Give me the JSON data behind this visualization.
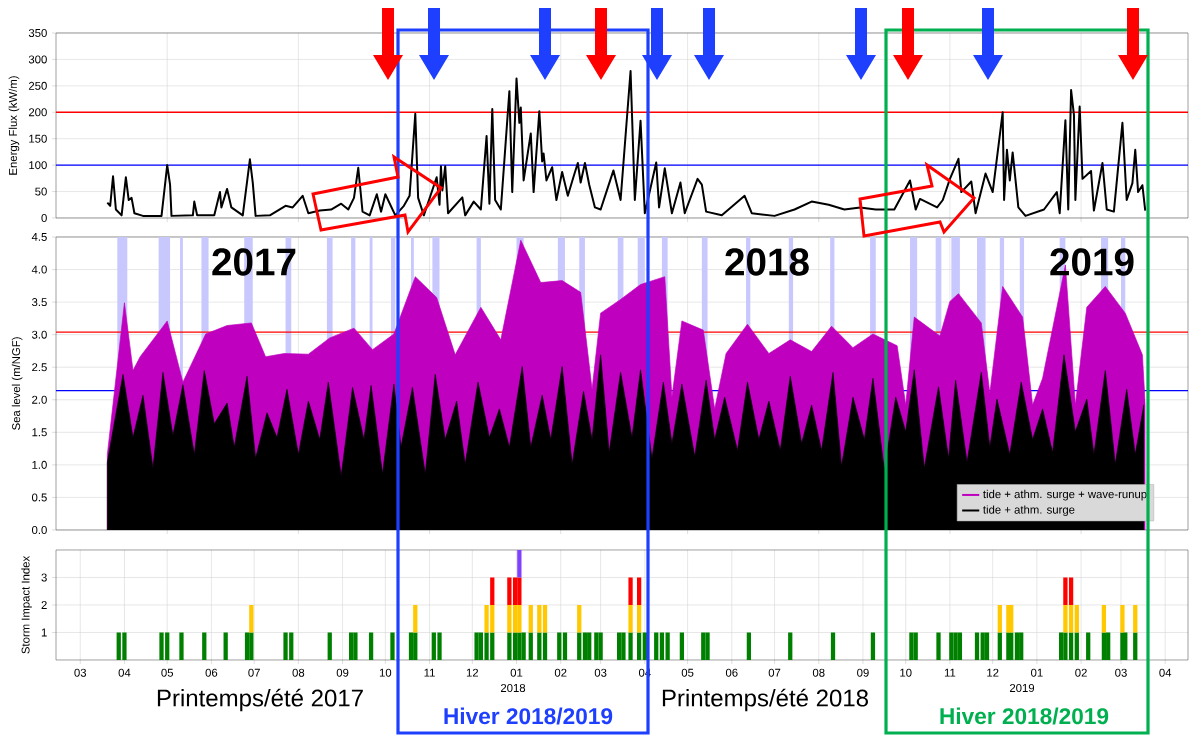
{
  "chart_data": [
    {
      "type": "line",
      "ylabel": "Energy Flux (kW/m)",
      "xlim": [
        "2017-02-12",
        "2019-04-17"
      ],
      "ylim": [
        0,
        350
      ],
      "yticks": [
        0,
        50,
        100,
        150,
        200,
        250,
        300,
        350
      ],
      "xticks": [
        {
          "value": "2017-05-01",
          "label": null
        },
        {
          "value": "2017-08-01",
          "label": null
        },
        {
          "value": "2017-11-01",
          "label": null
        },
        {
          "value": "2018-02-01",
          "label": null
        },
        {
          "value": "2018-05-01",
          "label": null
        },
        {
          "value": "2018-08-01",
          "label": null
        },
        {
          "value": "2018-11-01",
          "label": null
        },
        {
          "value": "2019-02-01",
          "label": null
        }
      ],
      "tick_labels": "y",
      "grid": true,
      "ref_lines": [
        {
          "axis": "y",
          "value": 100,
          "color": "#0000ff"
        },
        {
          "axis": "y",
          "value": 200,
          "color": "#ff0000"
        }
      ],
      "x": [
        "2017-03-20",
        "2017-03-22",
        "2017-03-24",
        "2017-03-26",
        "2017-03-30",
        "2017-04-02",
        "2017-04-04",
        "2017-04-06",
        "2017-04-08",
        "2017-04-14",
        "2017-04-27",
        "2017-05-01",
        "2017-05-03",
        "2017-05-04",
        "2017-05-19",
        "2017-05-20",
        "2017-05-22",
        "2017-06-03",
        "2017-06-07",
        "2017-06-08",
        "2017-06-12",
        "2017-06-15",
        "2017-06-23",
        "2017-06-28",
        "2017-06-30",
        "2017-07-02",
        "2017-07-12",
        "2017-07-23",
        "2017-07-28",
        "2017-08-04",
        "2017-08-08",
        "2017-08-16",
        "2017-08-24",
        "2017-08-31",
        "2017-09-05",
        "2017-09-09",
        "2017-09-12",
        "2017-09-15",
        "2017-09-20",
        "2017-09-25",
        "2017-09-28",
        "2017-10-01",
        "2017-10-08",
        "2017-10-14",
        "2017-10-18",
        "2017-10-22",
        "2017-10-24",
        "2017-10-28",
        "2017-11-06",
        "2017-11-08",
        "2017-11-09",
        "2017-11-10",
        "2017-11-12",
        "2017-11-14",
        "2017-11-24",
        "2017-11-26",
        "2017-12-02",
        "2017-12-07",
        "2017-12-11",
        "2017-12-13",
        "2017-12-15",
        "2017-12-17",
        "2017-12-21",
        "2017-12-27",
        "2017-12-29",
        "2018-01-01",
        "2018-01-03",
        "2018-01-04",
        "2018-01-06",
        "2018-01-11",
        "2018-01-13",
        "2018-01-17",
        "2018-01-19",
        "2018-01-20",
        "2018-01-22",
        "2018-01-26",
        "2018-01-29",
        "2018-02-02",
        "2018-02-06",
        "2018-02-10",
        "2018-02-13",
        "2018-02-15",
        "2018-02-18",
        "2018-02-21",
        "2018-02-25",
        "2018-03-01",
        "2018-03-05",
        "2018-03-10",
        "2018-03-15",
        "2018-03-22",
        "2018-03-25",
        "2018-03-29",
        "2018-04-01",
        "2018-04-09",
        "2018-04-11",
        "2018-04-15",
        "2018-04-20",
        "2018-04-26",
        "2018-04-29",
        "2018-05-08",
        "2018-05-11",
        "2018-05-14",
        "2018-05-25",
        "2018-06-10",
        "2018-06-15",
        "2018-07-01",
        "2018-07-15",
        "2018-07-27",
        "2018-08-08",
        "2018-08-19",
        "2018-08-30",
        "2018-09-10",
        "2018-09-23",
        "2018-10-04",
        "2018-10-08",
        "2018-10-11",
        "2018-10-23",
        "2018-10-27",
        "2018-11-01",
        "2018-11-07",
        "2018-11-09",
        "2018-11-16",
        "2018-11-19",
        "2018-11-26",
        "2018-12-01",
        "2018-12-08",
        "2018-12-09",
        "2018-12-11",
        "2018-12-13",
        "2018-12-15",
        "2018-12-19",
        "2018-12-24",
        "2019-01-06",
        "2019-01-15",
        "2019-01-17",
        "2019-01-21",
        "2019-01-23",
        "2019-01-25",
        "2019-01-27",
        "2019-01-28",
        "2019-01-31",
        "2019-02-02",
        "2019-02-08",
        "2019-02-10",
        "2019-02-16",
        "2019-02-19",
        "2019-02-24",
        "2019-03-02",
        "2019-03-05",
        "2019-03-09",
        "2019-03-11",
        "2019-03-13",
        "2019-03-16",
        "2019-03-18"
      ],
      "series": [
        {
          "color": "#000000",
          "values": [
            29,
            23,
            79,
            16,
            5,
            77,
            34,
            38,
            9,
            4,
            4,
            100,
            63,
            4,
            5,
            31,
            5,
            5,
            49,
            20,
            55,
            20,
            5,
            111,
            67,
            4,
            5,
            23,
            20,
            42,
            9,
            14,
            16,
            27,
            16,
            38,
            95,
            12,
            5,
            45,
            12,
            45,
            5,
            23,
            42,
            197,
            38,
            5,
            77,
            25,
            98,
            52,
            98,
            9,
            39,
            5,
            31,
            16,
            155,
            27,
            206,
            34,
            16,
            240,
            49,
            264,
            180,
            209,
            71,
            160,
            49,
            202,
            107,
            122,
            71,
            96,
            34,
            87,
            42,
            78,
            104,
            67,
            104,
            63,
            20,
            16,
            49,
            90,
            34,
            278,
            34,
            184,
            9,
            105,
            20,
            94,
            9,
            67,
            9,
            74,
            63,
            12,
            5,
            42,
            9,
            4,
            16,
            31,
            25,
            16,
            20,
            16,
            16,
            71,
            16,
            36,
            20,
            34,
            74,
            112,
            49,
            69,
            9,
            84,
            49,
            200,
            34,
            129,
            71,
            124,
            20,
            4,
            16,
            49,
            9,
            185,
            16,
            242,
            195,
            34,
            211,
            74,
            89,
            14,
            104,
            16,
            12,
            180,
            34,
            66,
            129,
            49,
            62,
            14
          ]
        }
      ]
    },
    {
      "type": "area",
      "ylabel": "Sea level (m/NGF)",
      "xlim": [
        "2017-02-12",
        "2019-04-17"
      ],
      "ylim": [
        0,
        4.5
      ],
      "yticks": [
        {
          "value": 0,
          "label": "0.0"
        },
        0.5,
        {
          "value": 1,
          "label": "1.0"
        },
        1.5,
        {
          "value": 2,
          "label": "2.0"
        },
        2.5,
        {
          "value": 3,
          "label": "3.0"
        },
        3.5,
        {
          "value": 4,
          "label": "4.0"
        },
        4.5
      ],
      "xticks": [
        {
          "value": "2017-05-01",
          "label": null
        },
        {
          "value": "2017-08-01",
          "label": null
        },
        {
          "value": "2017-11-01",
          "label": null
        },
        {
          "value": "2018-02-01",
          "label": null
        },
        {
          "value": "2018-05-01",
          "label": null
        },
        {
          "value": "2018-08-01",
          "label": null
        },
        {
          "value": "2018-11-01",
          "label": null
        },
        {
          "value": "2019-02-01",
          "label": null
        }
      ],
      "tick_labels": "y",
      "grid": true,
      "legend": "bottom right",
      "bands": [
        {
          "axis": "x",
          "from": "2017-03-27",
          "to": "2017-04-03",
          "color": "#c8c8ff"
        },
        {
          "axis": "x",
          "from": "2017-04-25",
          "to": "2017-05-03",
          "color": "#c8c8ff"
        },
        {
          "axis": "x",
          "from": "2017-05-10",
          "to": "2017-05-12",
          "color": "#c8c8ff"
        },
        {
          "axis": "x",
          "from": "2017-05-25",
          "to": "2017-05-30",
          "color": "#c8c8ff"
        },
        {
          "axis": "x",
          "from": "2017-06-24",
          "to": "2017-06-30",
          "color": "#c8c8ff"
        },
        {
          "axis": "x",
          "from": "2017-07-23",
          "to": "2017-07-27",
          "color": "#c8c8ff"
        },
        {
          "axis": "x",
          "from": "2017-08-21",
          "to": "2017-08-25",
          "color": "#c8c8ff"
        },
        {
          "axis": "x",
          "from": "2017-09-07",
          "to": "2017-09-10",
          "color": "#c8c8ff"
        },
        {
          "axis": "x",
          "from": "2017-09-20",
          "to": "2017-09-22",
          "color": "#c8c8ff"
        },
        {
          "axis": "x",
          "from": "2017-10-05",
          "to": "2017-10-08",
          "color": "#c8c8ff"
        },
        {
          "axis": "x",
          "from": "2017-10-19",
          "to": "2017-10-21",
          "color": "#c8c8ff"
        },
        {
          "axis": "x",
          "from": "2017-11-03",
          "to": "2017-11-08",
          "color": "#c8c8ff"
        },
        {
          "axis": "x",
          "from": "2017-12-04",
          "to": "2017-12-07",
          "color": "#c8c8ff"
        },
        {
          "axis": "x",
          "from": "2018-01-01",
          "to": "2018-01-06",
          "color": "#c8c8ff"
        },
        {
          "axis": "x",
          "from": "2018-01-30",
          "to": "2018-02-04",
          "color": "#c8c8ff"
        },
        {
          "axis": "x",
          "from": "2018-02-14",
          "to": "2018-02-18",
          "color": "#c8c8ff"
        },
        {
          "axis": "x",
          "from": "2018-03-13",
          "to": "2018-03-17",
          "color": "#c8c8ff"
        },
        {
          "axis": "x",
          "from": "2018-03-27",
          "to": "2018-04-01",
          "color": "#c8c8ff"
        },
        {
          "axis": "x",
          "from": "2018-04-13",
          "to": "2018-04-17",
          "color": "#c8c8ff"
        },
        {
          "axis": "x",
          "from": "2018-05-11",
          "to": "2018-05-15",
          "color": "#c8c8ff"
        },
        {
          "axis": "x",
          "from": "2018-06-11",
          "to": "2018-06-14",
          "color": "#c8c8ff"
        },
        {
          "axis": "x",
          "from": "2018-07-11",
          "to": "2018-07-14",
          "color": "#c8c8ff"
        },
        {
          "axis": "x",
          "from": "2018-08-09",
          "to": "2018-08-12",
          "color": "#c8c8ff"
        },
        {
          "axis": "x",
          "from": "2018-09-06",
          "to": "2018-09-10",
          "color": "#c8c8ff"
        },
        {
          "axis": "x",
          "from": "2018-10-04",
          "to": "2018-10-09",
          "color": "#c8c8ff"
        },
        {
          "axis": "x",
          "from": "2018-10-22",
          "to": "2018-10-26",
          "color": "#c8c8ff"
        },
        {
          "axis": "x",
          "from": "2018-11-02",
          "to": "2018-11-08",
          "color": "#c8c8ff"
        },
        {
          "axis": "x",
          "from": "2018-11-20",
          "to": "2018-11-26",
          "color": "#c8c8ff"
        },
        {
          "axis": "x",
          "from": "2018-12-06",
          "to": "2018-12-09",
          "color": "#c8c8ff"
        },
        {
          "axis": "x",
          "from": "2018-12-20",
          "to": "2018-12-23",
          "color": "#c8c8ff"
        },
        {
          "axis": "x",
          "from": "2019-01-17",
          "to": "2019-01-21",
          "color": "#c8c8ff"
        },
        {
          "axis": "x",
          "from": "2019-02-15",
          "to": "2019-02-20",
          "color": "#c8c8ff"
        },
        {
          "axis": "x",
          "from": "2019-03-01",
          "to": "2019-03-04",
          "color": "#c8c8ff"
        }
      ],
      "ref_lines": [
        {
          "axis": "y",
          "value": 3.04,
          "color": "#ff0000"
        },
        {
          "axis": "y",
          "value": 2.14,
          "color": "#0000ff"
        }
      ],
      "annotations": [
        "2017",
        "2018",
        "2019"
      ],
      "series": [
        {
          "name": "tide + athm. surge + wave-runup",
          "color": "#bf00bf",
          "x": [
            "2017-03-20",
            "2017-04-01",
            "2017-04-07",
            "2017-04-12",
            "2017-05-01",
            "2017-05-12",
            "2017-05-28",
            "2017-06-12",
            "2017-06-29",
            "2017-07-09",
            "2017-07-22",
            "2017-08-08",
            "2017-08-23",
            "2017-09-09",
            "2017-09-22",
            "2017-10-07",
            "2017-10-22",
            "2017-11-06",
            "2017-11-19",
            "2017-12-07",
            "2017-12-21",
            "2018-01-04",
            "2018-01-18",
            "2018-02-02",
            "2018-02-15",
            "2018-02-23",
            "2018-03-01",
            "2018-03-15",
            "2018-03-29",
            "2018-04-15",
            "2018-04-20",
            "2018-04-27",
            "2018-05-12",
            "2018-05-20",
            "2018-05-28",
            "2018-06-12",
            "2018-06-27",
            "2018-07-12",
            "2018-07-27",
            "2018-08-10",
            "2018-08-25",
            "2018-09-08",
            "2018-09-25",
            "2018-10-01",
            "2018-10-07",
            "2018-10-25",
            "2018-11-01",
            "2018-11-07",
            "2018-11-23",
            "2018-11-29",
            "2018-12-08",
            "2018-12-22",
            "2018-12-29",
            "2019-01-05",
            "2019-01-21",
            "2019-01-28",
            "2019-02-05",
            "2019-02-18",
            "2019-03-04",
            "2019-03-16",
            "2019-03-18"
          ],
          "values": [
            1.16,
            3.49,
            2.45,
            2.66,
            3.21,
            2.27,
            3.01,
            3.14,
            3.18,
            2.66,
            2.71,
            2.7,
            2.95,
            3.1,
            2.77,
            3.01,
            3.89,
            3.57,
            2.69,
            3.42,
            2.92,
            4.45,
            3.8,
            3.83,
            3.65,
            2.16,
            3.33,
            3.54,
            3.77,
            3.89,
            2.04,
            3.21,
            3.07,
            1.86,
            2.71,
            3.16,
            2.71,
            2.92,
            2.74,
            3.13,
            2.8,
            3.01,
            2.83,
            1.92,
            3.27,
            2.98,
            3.51,
            3.63,
            3.18,
            2.1,
            3.74,
            3.27,
            1.92,
            2.33,
            4.07,
            1.92,
            3.42,
            3.74,
            3.33,
            2.69,
            1.92
          ]
        },
        {
          "name": "tide + athm. surge",
          "color": "#000000",
          "x": [
            "2017-03-20",
            "2017-03-31",
            "2017-04-07",
            "2017-04-14",
            "2017-04-21",
            "2017-04-28",
            "2017-05-05",
            "2017-05-12",
            "2017-05-20",
            "2017-05-27",
            "2017-06-03",
            "2017-06-12",
            "2017-06-17",
            "2017-06-26",
            "2017-07-02",
            "2017-07-10",
            "2017-07-17",
            "2017-07-24",
            "2017-08-01",
            "2017-08-08",
            "2017-08-16",
            "2017-08-22",
            "2017-08-31",
            "2017-09-08",
            "2017-09-16",
            "2017-09-21",
            "2017-09-29",
            "2017-10-07",
            "2017-10-12",
            "2017-10-20",
            "2017-10-29",
            "2017-11-05",
            "2017-11-12",
            "2017-11-20",
            "2017-11-26",
            "2017-12-05",
            "2017-12-13",
            "2017-12-20",
            "2017-12-27",
            "2018-01-05",
            "2018-01-11",
            "2018-01-19",
            "2018-01-25",
            "2018-02-02",
            "2018-02-09",
            "2018-02-17",
            "2018-02-23",
            "2018-03-01",
            "2018-03-07",
            "2018-03-15",
            "2018-03-23",
            "2018-03-29",
            "2018-04-06",
            "2018-04-14",
            "2018-04-20",
            "2018-04-27",
            "2018-05-06",
            "2018-05-14",
            "2018-05-20",
            "2018-05-27",
            "2018-06-05",
            "2018-06-12",
            "2018-06-20",
            "2018-06-27",
            "2018-07-05",
            "2018-07-12",
            "2018-07-20",
            "2018-07-27",
            "2018-08-03",
            "2018-08-11",
            "2018-08-17",
            "2018-08-25",
            "2018-09-02",
            "2018-09-08",
            "2018-09-16",
            "2018-09-24",
            "2018-10-01",
            "2018-10-07",
            "2018-10-14",
            "2018-10-24",
            "2018-10-31",
            "2018-11-05",
            "2018-11-13",
            "2018-11-23",
            "2018-11-29",
            "2018-12-04",
            "2018-12-13",
            "2018-12-21",
            "2018-12-29",
            "2019-01-05",
            "2019-01-12",
            "2019-01-20",
            "2019-01-28",
            "2019-02-05",
            "2019-02-10",
            "2019-02-18",
            "2019-02-25",
            "2019-03-05",
            "2019-03-11",
            "2019-03-17"
          ],
          "values": [
            1.04,
            2.39,
            1.42,
            2.07,
            0.95,
            2.42,
            1.45,
            2.23,
            1.16,
            2.45,
            1.63,
            1.95,
            1.27,
            2.36,
            1.1,
            1.8,
            1.42,
            2.16,
            1.16,
            1.98,
            1.39,
            2.27,
            0.83,
            2.19,
            1.39,
            2.22,
            0.86,
            2.24,
            1.27,
            2.19,
            0.86,
            2.39,
            1.39,
            1.98,
            1.01,
            2.27,
            1.42,
            1.86,
            1.27,
            2.51,
            1.27,
            2.07,
            1.39,
            2.51,
            1.01,
            2.13,
            1.39,
            2.69,
            1.19,
            2.42,
            1.42,
            2.46,
            1.1,
            2.27,
            1.33,
            2.24,
            1.13,
            2.3,
            1.39,
            2.04,
            1.22,
            2.27,
            1.39,
            1.98,
            1.22,
            2.36,
            1.33,
            1.92,
            1.22,
            2.42,
            0.98,
            2.04,
            1.39,
            2.33,
            0.92,
            2.04,
            1.51,
            2.46,
            0.95,
            2.2,
            1.1,
            2.3,
            1.04,
            2.42,
            1.27,
            2.01,
            1.16,
            2.27,
            1.39,
            1.86,
            1.19,
            2.69,
            1.51,
            2.01,
            1.16,
            2.45,
            1.01,
            2.16,
            1.16,
            1.92
          ]
        }
      ]
    },
    {
      "type": "bar",
      "ylabel": "Storm Impact Index",
      "xlim": [
        "2017-02-12",
        "2019-04-17"
      ],
      "ylim": [
        0,
        4
      ],
      "yticks": [
        1,
        2,
        3
      ],
      "grid": true,
      "stacked": true,
      "xticks": [
        {
          "value": "2017-03-01",
          "label": "03"
        },
        {
          "value": "2017-04-01",
          "label": "04"
        },
        {
          "value": "2017-05-01",
          "label": "05"
        },
        {
          "value": "2017-06-01",
          "label": "06"
        },
        {
          "value": "2017-07-01",
          "label": "07"
        },
        {
          "value": "2017-08-01",
          "label": "08"
        },
        {
          "value": "2017-09-01",
          "label": "09"
        },
        {
          "value": "2017-10-01",
          "label": "10"
        },
        {
          "value": "2017-11-01",
          "label": "11"
        },
        {
          "value": "2017-12-01",
          "label": "12"
        },
        {
          "value": "2018-01-01",
          "label": "01"
        },
        {
          "value": "2018-02-01",
          "label": "02"
        },
        {
          "value": "2018-03-01",
          "label": "03"
        },
        {
          "value": "2018-04-01",
          "label": "04"
        },
        {
          "value": "2018-05-01",
          "label": "05"
        },
        {
          "value": "2018-06-01",
          "label": "06"
        },
        {
          "value": "2018-07-01",
          "label": "07"
        },
        {
          "value": "2018-08-01",
          "label": "08"
        },
        {
          "value": "2018-09-01",
          "label": "09"
        },
        {
          "value": "2018-10-01",
          "label": "10"
        },
        {
          "value": "2018-11-01",
          "label": "11"
        },
        {
          "value": "2018-12-01",
          "label": "12"
        },
        {
          "value": "2019-01-01",
          "label": "01"
        },
        {
          "value": "2019-02-01",
          "label": "02"
        },
        {
          "value": "2019-03-01",
          "label": "03"
        },
        {
          "value": "2019-04-01",
          "label": "04"
        }
      ],
      "annotations": [
        "2018",
        "2019",
        "Printemps/été 2017",
        "Printemps/été 2018",
        "Hiver 2018/2019",
        "Hiver 2018/2019"
      ],
      "series": [
        {
          "color": "#008000",
          "x": [
            "2017-03-28",
            "2017-04-01",
            "2017-04-27",
            "2017-05-01",
            "2017-05-11",
            "2017-05-27",
            "2017-06-11",
            "2017-06-26",
            "2017-06-29",
            "2017-07-23",
            "2017-07-27",
            "2017-08-23",
            "2017-09-07",
            "2017-09-10",
            "2017-09-21",
            "2017-10-06",
            "2017-10-19",
            "2017-10-22",
            "2017-11-04",
            "2017-11-08",
            "2017-12-04",
            "2017-12-07",
            "2017-12-11",
            "2017-12-15",
            "2017-12-27",
            "2017-12-31",
            "2018-01-03",
            "2018-01-06",
            "2018-01-11",
            "2018-01-17",
            "2018-01-21",
            "2018-01-31",
            "2018-02-04",
            "2018-02-14",
            "2018-02-18",
            "2018-02-21",
            "2018-02-26",
            "2018-03-01",
            "2018-03-14",
            "2018-03-17",
            "2018-03-22",
            "2018-03-28",
            "2018-04-01",
            "2018-04-09",
            "2018-04-13",
            "2018-04-17",
            "2018-04-27",
            "2018-05-12",
            "2018-05-15",
            "2018-06-13",
            "2018-07-12",
            "2018-08-11",
            "2018-09-08",
            "2018-10-05",
            "2018-10-08",
            "2018-10-24",
            "2018-11-02",
            "2018-11-05",
            "2018-11-08",
            "2018-11-20",
            "2018-11-24",
            "2018-11-27",
            "2018-12-06",
            "2018-12-12",
            "2018-12-14",
            "2018-12-18",
            "2018-12-21",
            "2019-01-18",
            "2019-01-21",
            "2019-01-25",
            "2019-01-29",
            "2019-02-06",
            "2019-02-17",
            "2019-02-20",
            "2019-03-02",
            "2019-03-04",
            "2019-03-11"
          ],
          "values": [
            1,
            1,
            1,
            1,
            1,
            1,
            1,
            1,
            1,
            1,
            1,
            1,
            1,
            1,
            1,
            1,
            1,
            1,
            1,
            1,
            1,
            1,
            1,
            1,
            1,
            1,
            1,
            1,
            1,
            1,
            1,
            1,
            1,
            1,
            1,
            1,
            1,
            1,
            1,
            1,
            1,
            1,
            1,
            1,
            1,
            1,
            1,
            1,
            1,
            1,
            1,
            1,
            1,
            1,
            1,
            1,
            1,
            1,
            1,
            1,
            1,
            1,
            1,
            1,
            1,
            1,
            1,
            1,
            1,
            1,
            1,
            1,
            1,
            1,
            1,
            1,
            1
          ]
        },
        {
          "color": "#ffc800",
          "x": [
            "2017-06-29",
            "2017-10-22",
            "2017-12-11",
            "2017-12-15",
            "2017-12-27",
            "2017-12-31",
            "2018-01-03",
            "2018-01-11",
            "2018-01-17",
            "2018-01-21",
            "2018-02-14",
            "2018-03-22",
            "2018-03-28",
            "2018-12-06",
            "2018-12-12",
            "2018-12-14",
            "2019-01-21",
            "2019-01-25",
            "2019-01-29",
            "2019-02-17",
            "2019-03-02",
            "2019-03-11"
          ],
          "values": [
            1,
            1,
            1,
            1,
            1,
            1,
            1,
            1,
            1,
            1,
            1,
            1,
            1,
            1,
            1,
            1,
            1,
            1,
            1,
            1,
            1,
            1
          ]
        },
        {
          "color": "#ff0000",
          "x": [
            "2017-12-15",
            "2017-12-27",
            "2017-12-31",
            "2018-01-03",
            "2018-03-22",
            "2018-03-28",
            "2019-01-21",
            "2019-01-25"
          ],
          "values": [
            1,
            1,
            1,
            1,
            1,
            1,
            1,
            1
          ]
        },
        {
          "color": "#8040ff",
          "x": [
            "2018-01-03"
          ],
          "values": [
            1
          ]
        }
      ]
    }
  ]
}
